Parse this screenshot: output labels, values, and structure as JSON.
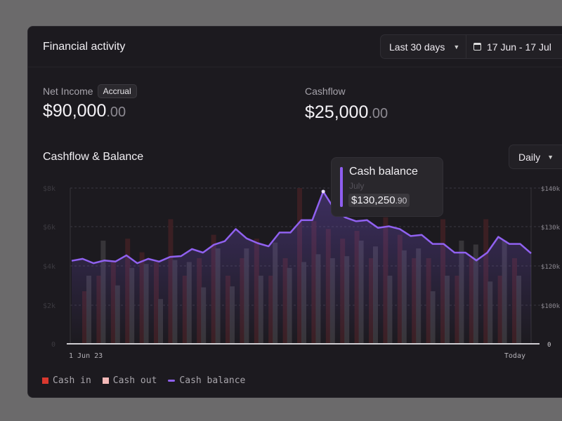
{
  "header": {
    "title": "Financial activity",
    "range_select": "Last 30 days",
    "date_range": "17 Jun - 17 Jul"
  },
  "kpis": [
    {
      "label": "Net Income",
      "badge": "Accrual",
      "value": "$90,000",
      "cents": ".00"
    },
    {
      "label": "Cashflow",
      "value": "$25,000",
      "cents": ".00"
    }
  ],
  "chart_section": {
    "title": "Cashflow & Balance",
    "interval_select": "Daily"
  },
  "tooltip": {
    "title": "Cash balance",
    "subtitle": "July",
    "value": "$130,250",
    "cents": ".90"
  },
  "colors": {
    "cash_in": "#d9382f",
    "cash_out": "#f4b9b8",
    "cash_balance": "#9061f0"
  },
  "chart_data": {
    "type": "bar+line",
    "x_tick_labels": [
      "1 Jun 23",
      "Today"
    ],
    "left_axis": {
      "ticks": [
        "$8k",
        "$6k",
        "$4k",
        "$2k",
        "0"
      ],
      "range": [
        0,
        8000
      ]
    },
    "right_axis": {
      "ticks": [
        "$140k",
        "$130k",
        "$120k",
        "$100k",
        "0"
      ]
    },
    "grid": true,
    "legend_placement": "bottom-left",
    "series": [
      {
        "name": "Cash in",
        "type": "bar",
        "axis": "left",
        "values": [
          2.7,
          3.5,
          4.2,
          5.4,
          4.7,
          4.2,
          6.4,
          3.5,
          4.4,
          5.6,
          3.5,
          4.4,
          5.4,
          3.5,
          4.4,
          8.0,
          6.3,
          5.9,
          5.4,
          5.8,
          4.4,
          6.5,
          5.6,
          4.4,
          4.4,
          6.4,
          3.5,
          4.4,
          6.4,
          3.5,
          4.4
        ],
        "unit": "k"
      },
      {
        "name": "Cash out",
        "type": "bar",
        "axis": "left",
        "values": [
          3.5,
          5.3,
          3.0,
          3.9,
          4.1,
          2.3,
          4.3,
          4.2,
          2.9,
          4.9,
          2.95,
          4.9,
          3.5,
          5.2,
          3.9,
          4.2,
          4.6,
          4.4,
          4.5,
          5.3,
          5.0,
          3.5,
          4.8,
          4.9,
          2.7,
          3.5,
          5.3,
          5.1,
          3.2,
          5.3,
          3.5
        ],
        "unit": "k"
      },
      {
        "name": "Cash balance",
        "type": "line",
        "axis": "right",
        "values": [
          121.3,
          121.8,
          120.7,
          121.4,
          121.1,
          122.7,
          120.7,
          121.8,
          121.1,
          122.3,
          122.5,
          124.3,
          123.4,
          125.4,
          126.3,
          129.4,
          127.0,
          125.8,
          125.0,
          128.5,
          128.5,
          131.7,
          131.7,
          139.1,
          134.6,
          132.4,
          131.4,
          131.7,
          129.7,
          130.1,
          129.4,
          127.6,
          127.9,
          125.6,
          125.6,
          123.4,
          123.4,
          121.4,
          123.4,
          127.4,
          125.6,
          125.6,
          123.2
        ],
        "unit": "k"
      }
    ]
  }
}
